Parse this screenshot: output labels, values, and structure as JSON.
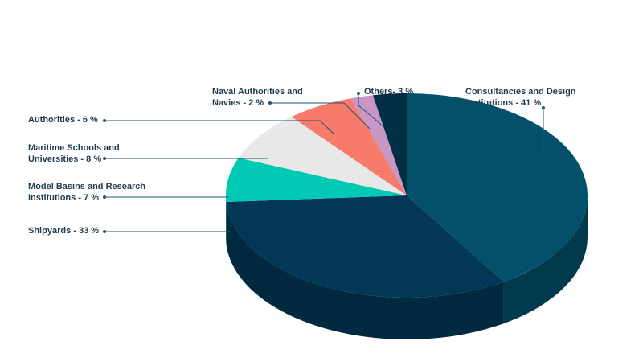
{
  "chart_data": {
    "type": "pie",
    "title": "",
    "unit": "%",
    "slices": [
      {
        "name": "Consultancies and Design Institutions",
        "value": 41,
        "label_lines": [
          "Consultancies and Design",
          "Institutions - 41 %"
        ],
        "color": "#02506a",
        "side_color": "#013a4f"
      },
      {
        "name": "Shipyards",
        "value": 33,
        "label_lines": [
          "Shipyards - 33 %"
        ],
        "color": "#023855",
        "side_color": "#012a40"
      },
      {
        "name": "Model Basins and Research Institutions",
        "value": 7,
        "label_lines": [
          "Model Basins and Research",
          "Institutions - 7 %"
        ],
        "color": "#02c9b4",
        "side_color": "#019a8a"
      },
      {
        "name": "Maritime Schools and Universities",
        "value": 8,
        "label_lines": [
          "Maritime Schools and",
          "Universities - 8 %"
        ],
        "color": "#e8e8e8",
        "side_color": "#c8c8c8"
      },
      {
        "name": "Authorities",
        "value": 6,
        "label_lines": [
          "Authorities - 6 %"
        ],
        "color": "#f77b6b",
        "side_color": "#d86254"
      },
      {
        "name": "Naval Authorities and Navies",
        "value": 2,
        "label_lines": [
          "Naval Authorities and",
          "Navies - 2 %"
        ],
        "color": "#c997c6",
        "side_color": "#a97aa6"
      },
      {
        "name": "Others",
        "value": 3,
        "label_lines": [
          "Others- 3 %"
        ],
        "color": "#022f43",
        "side_color": "#012232"
      }
    ],
    "leader_color": "#1f5573",
    "legend": "none",
    "style": "3d-pie"
  }
}
